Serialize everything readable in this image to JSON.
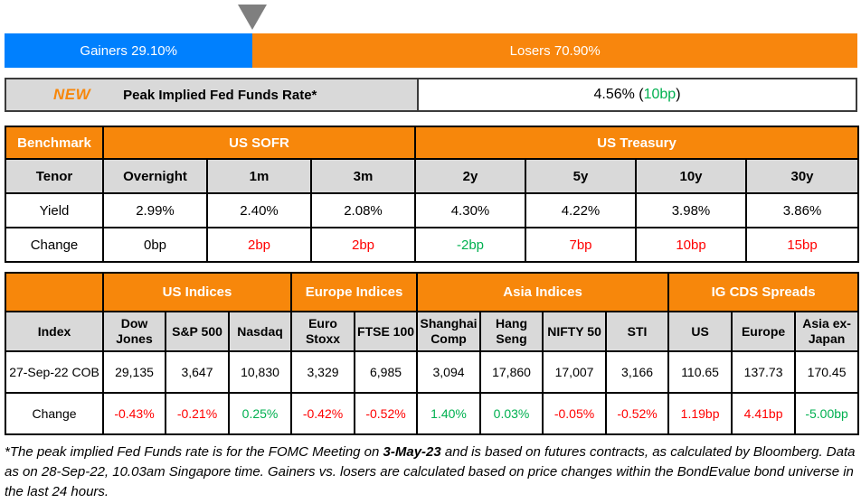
{
  "colors": {
    "accent_orange": "#F7870B",
    "gainers_blue": "#0080FE",
    "losers_orange": "#F8860D",
    "positive_green": "#00B050",
    "negative_red": "#FF0000",
    "header_gray": "#D9D9D9",
    "pointer_gray": "#7F7F7F"
  },
  "gauge": {
    "gainers_label": "Gainers 29.10%",
    "losers_label": "Losers 70.90%",
    "gainers_pct": 29.1,
    "losers_pct": 70.9,
    "gainers_color": "#0080FE",
    "losers_color": "#F8860D"
  },
  "peak_rate": {
    "badge": "NEW",
    "label": "Peak Implied Fed Funds Rate*",
    "value": "4.56% (",
    "change": "10bp",
    "close": ")",
    "change_color": "#00B050"
  },
  "benchmark": {
    "corner_label": "Benchmark",
    "group_sofr": "US SOFR",
    "group_treasury": "US Treasury",
    "tenor_label": "Tenor",
    "yield_label": "Yield",
    "change_label": "Change",
    "columns": [
      {
        "tenor": "Overnight",
        "yield": "2.99%",
        "change": "0bp",
        "change_color": "#000000"
      },
      {
        "tenor": "1m",
        "yield": "2.40%",
        "change": "2bp",
        "change_color": "#FF0000"
      },
      {
        "tenor": "3m",
        "yield": "2.08%",
        "change": "2bp",
        "change_color": "#FF0000"
      },
      {
        "tenor": "2y",
        "yield": "4.30%",
        "change": "-2bp",
        "change_color": "#00B050"
      },
      {
        "tenor": "5y",
        "yield": "4.22%",
        "change": "7bp",
        "change_color": "#FF0000"
      },
      {
        "tenor": "10y",
        "yield": "3.98%",
        "change": "10bp",
        "change_color": "#FF0000"
      },
      {
        "tenor": "30y",
        "yield": "3.86%",
        "change": "15bp",
        "change_color": "#FF0000"
      }
    ]
  },
  "indices": {
    "groups": [
      {
        "label": "US Indices"
      },
      {
        "label": "Europe Indices"
      },
      {
        "label": "Asia Indices"
      },
      {
        "label": "IG CDS Spreads"
      }
    ],
    "index_label": "Index",
    "cob_label": "27-Sep-22 COB",
    "change_label": "Change",
    "columns": [
      {
        "name": "Dow Jones",
        "cob": "29,135",
        "change": "-0.43%",
        "change_color": "#FF0000"
      },
      {
        "name": "S&P 500",
        "cob": "3,647",
        "change": "-0.21%",
        "change_color": "#FF0000"
      },
      {
        "name": "Nasdaq",
        "cob": "10,830",
        "change": "0.25%",
        "change_color": "#00B050"
      },
      {
        "name": "Euro Stoxx",
        "cob": "3,329",
        "change": "-0.42%",
        "change_color": "#FF0000"
      },
      {
        "name": "FTSE 100",
        "cob": "6,985",
        "change": "-0.52%",
        "change_color": "#FF0000"
      },
      {
        "name": "Shanghai Comp",
        "cob": "3,094",
        "change": "1.40%",
        "change_color": "#00B050"
      },
      {
        "name": "Hang Seng",
        "cob": "17,860",
        "change": "0.03%",
        "change_color": "#00B050"
      },
      {
        "name": "NIFTY 50",
        "cob": "17,007",
        "change": "-0.05%",
        "change_color": "#FF0000"
      },
      {
        "name": "STI",
        "cob": "3,166",
        "change": "-0.52%",
        "change_color": "#FF0000"
      },
      {
        "name": "US",
        "cob": "110.65",
        "change": "1.19bp",
        "change_color": "#FF0000"
      },
      {
        "name": "Europe",
        "cob": "137.73",
        "change": "4.41bp",
        "change_color": "#FF0000"
      },
      {
        "name": "Asia ex-Japan",
        "cob": "170.45",
        "change": "-5.00bp",
        "change_color": "#00B050"
      }
    ]
  },
  "footnote": {
    "part1": "*The peak implied Fed Funds rate is for the FOMC Meeting on ",
    "bold_date": "3-May-23",
    "part2": " and is based on futures contracts, as calculated by Bloomberg. Data as on 28-Sep-22, 10.03am Singapore time. Gainers vs. losers are calculated based on price changes within the BondEvalue bond universe in the last 24 hours."
  },
  "chart_data": [
    {
      "type": "bar",
      "title": "Gainers vs Losers",
      "orientation": "horizontal-stacked",
      "categories": [
        "Gainers",
        "Losers"
      ],
      "values": [
        29.1,
        70.9
      ],
      "unit": "%",
      "colors": [
        "#0080FE",
        "#F8860D"
      ]
    },
    {
      "type": "table",
      "title": "Benchmark yields and daily changes",
      "column_groups": {
        "US SOFR": [
          "Overnight",
          "1m",
          "3m"
        ],
        "US Treasury": [
          "2y",
          "5y",
          "10y",
          "30y"
        ]
      },
      "categories": [
        "Overnight",
        "1m",
        "3m",
        "2y",
        "5y",
        "10y",
        "30y"
      ],
      "series": [
        {
          "name": "Yield",
          "values": [
            "2.99%",
            "2.40%",
            "2.08%",
            "4.30%",
            "4.22%",
            "3.98%",
            "3.86%"
          ]
        },
        {
          "name": "Change",
          "values": [
            "0bp",
            "2bp",
            "2bp",
            "-2bp",
            "7bp",
            "10bp",
            "15bp"
          ]
        }
      ]
    },
    {
      "type": "table",
      "title": "Global indices and IG CDS spreads",
      "column_groups": {
        "US Indices": [
          "Dow Jones",
          "S&P 500",
          "Nasdaq"
        ],
        "Europe Indices": [
          "Euro Stoxx",
          "FTSE 100"
        ],
        "Asia Indices": [
          "Shanghai Comp",
          "Hang Seng",
          "NIFTY 50",
          "STI"
        ],
        "IG CDS Spreads": [
          "US",
          "Europe",
          "Asia ex-Japan"
        ]
      },
      "categories": [
        "Dow Jones",
        "S&P 500",
        "Nasdaq",
        "Euro Stoxx",
        "FTSE 100",
        "Shanghai Comp",
        "Hang Seng",
        "NIFTY 50",
        "STI",
        "US",
        "Europe",
        "Asia ex-Japan"
      ],
      "series": [
        {
          "name": "27-Sep-22 COB",
          "values": [
            "29,135",
            "3,647",
            "10,830",
            "3,329",
            "6,985",
            "3,094",
            "17,860",
            "17,007",
            "3,166",
            "110.65",
            "137.73",
            "170.45"
          ]
        },
        {
          "name": "Change",
          "values": [
            "-0.43%",
            "-0.21%",
            "0.25%",
            "-0.42%",
            "-0.52%",
            "1.40%",
            "0.03%",
            "-0.05%",
            "-0.52%",
            "1.19bp",
            "4.41bp",
            "-5.00bp"
          ]
        }
      ]
    },
    {
      "type": "table",
      "title": "Peak Implied Fed Funds Rate",
      "categories": [
        "Peak Implied Fed Funds Rate*"
      ],
      "series": [
        {
          "name": "Value",
          "values": [
            "4.56% (10bp)"
          ]
        }
      ]
    }
  ]
}
